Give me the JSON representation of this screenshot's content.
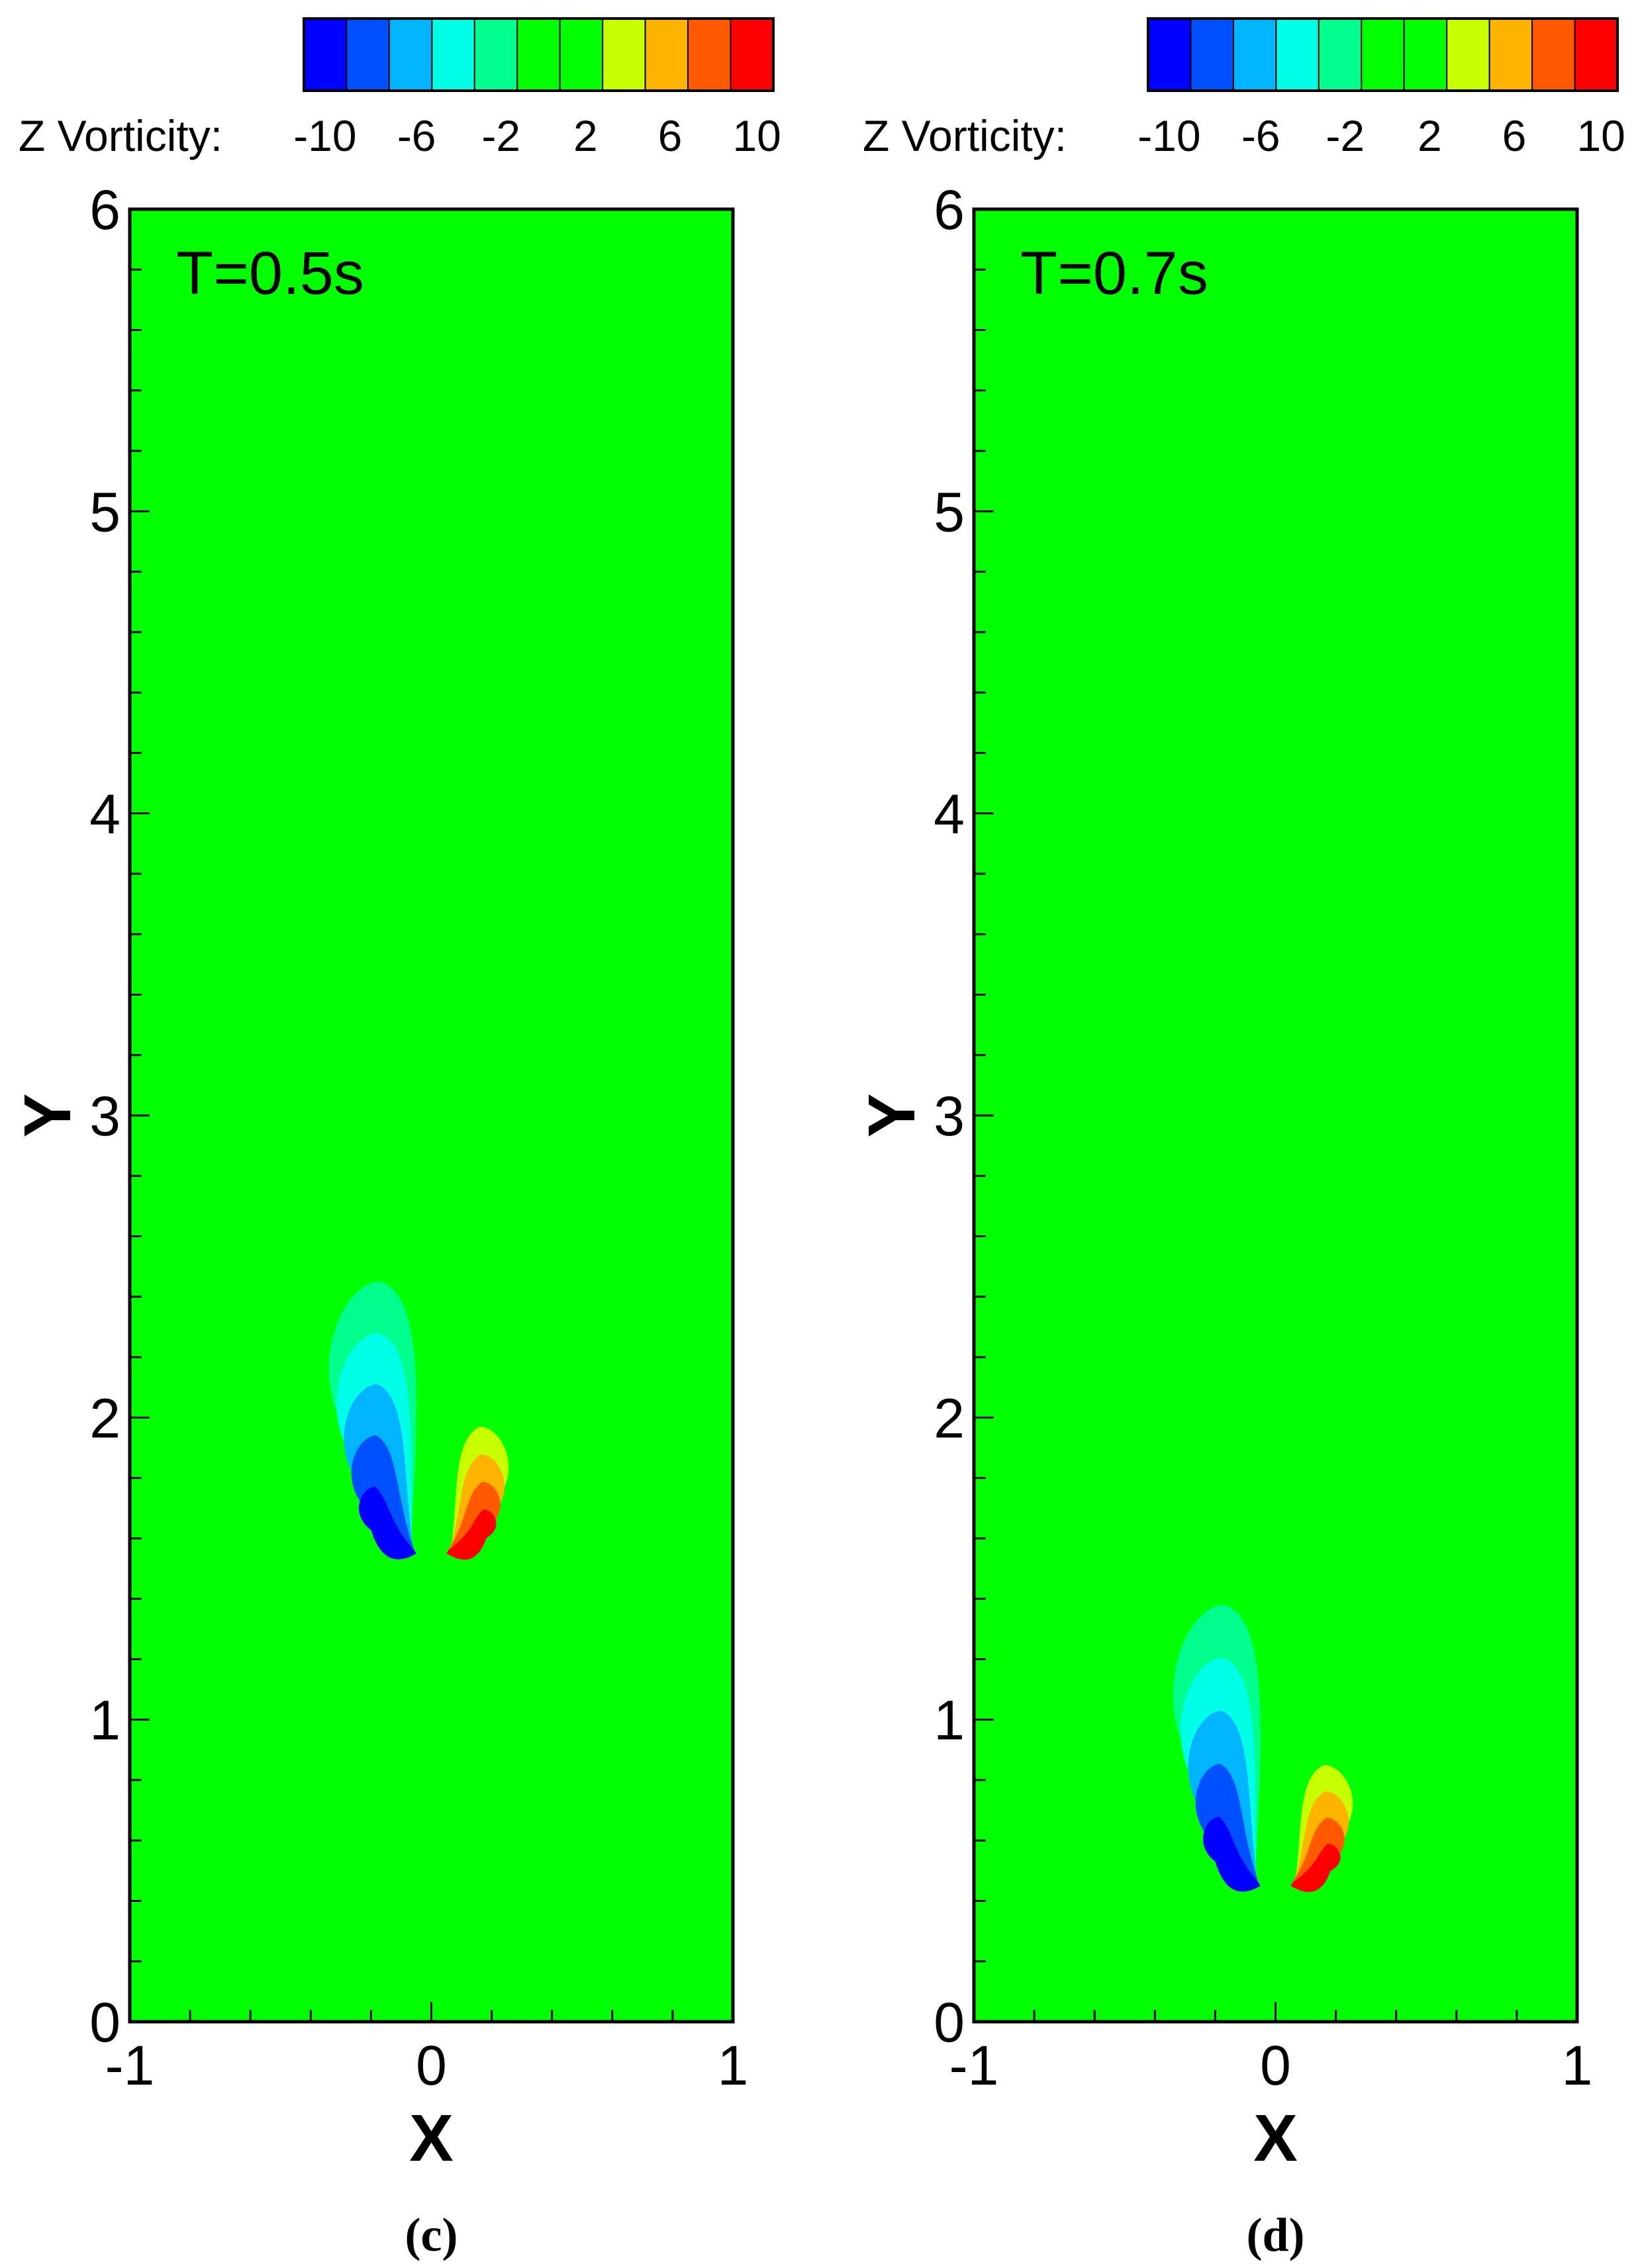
{
  "chart_data": [
    {
      "type": "heatmap",
      "panel_label": "(c)",
      "annotation": "T=0.5s",
      "xlabel": "X",
      "ylabel": "Y",
      "xlim": [
        -1,
        1
      ],
      "ylim": [
        0,
        6
      ],
      "x_ticks": [
        "-1",
        "0",
        "1"
      ],
      "y_ticks": [
        "0",
        "1",
        "2",
        "3",
        "4",
        "5",
        "6"
      ],
      "background_value": 0,
      "colorbar": {
        "title": "Z Vorticity:",
        "tick_labels": [
          "-10",
          "-6",
          "-2",
          "2",
          "6",
          "10"
        ],
        "colors": [
          "#0000ff",
          "#0050ff",
          "#00b4ff",
          "#00ffe6",
          "#00ff8c",
          "#00ff00",
          "#00ff00",
          "#c8ff00",
          "#ffb400",
          "#ff5a00",
          "#ff0000"
        ]
      },
      "vortices": [
        {
          "sign": "negative",
          "x": -0.05,
          "y": 1.55,
          "base_x": -0.17,
          "tip_y": 2.45,
          "max_abs": 10
        },
        {
          "sign": "positive",
          "x": 0.05,
          "y": 1.55,
          "base_x": 0.16,
          "tip_y": 1.97,
          "max_abs": 10
        }
      ]
    },
    {
      "type": "heatmap",
      "panel_label": "(d)",
      "annotation": "T=0.7s",
      "xlabel": "X",
      "ylabel": "Y",
      "xlim": [
        -1,
        1
      ],
      "ylim": [
        0,
        6
      ],
      "x_ticks": [
        "-1",
        "0",
        "1"
      ],
      "y_ticks": [
        "0",
        "1",
        "2",
        "3",
        "4",
        "5",
        "6"
      ],
      "background_value": 0,
      "colorbar": {
        "title": "Z Vorticity:",
        "tick_labels": [
          "-10",
          "-6",
          "-2",
          "2",
          "6",
          "10"
        ],
        "colors": [
          "#0000ff",
          "#0050ff",
          "#00b4ff",
          "#00ffe6",
          "#00ff8c",
          "#00ff00",
          "#00ff00",
          "#c8ff00",
          "#ffb400",
          "#ff5a00",
          "#ff0000"
        ]
      },
      "vortices": [
        {
          "sign": "negative",
          "x": -0.05,
          "y": 0.45,
          "base_x": -0.17,
          "tip_y": 1.38,
          "max_abs": 10
        },
        {
          "sign": "positive",
          "x": 0.05,
          "y": 0.45,
          "base_x": 0.16,
          "tip_y": 0.85,
          "max_abs": 10
        }
      ]
    }
  ]
}
